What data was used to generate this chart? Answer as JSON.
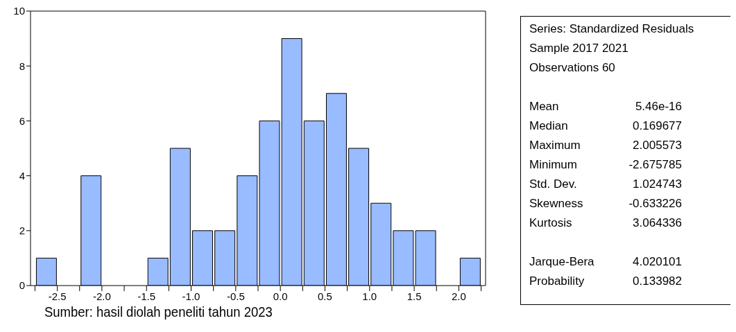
{
  "chart_data": {
    "type": "histogram",
    "color": "#99bbff",
    "bins": [
      -2.75,
      -2.5,
      -2.25,
      -2.0,
      -1.75,
      -1.5,
      -1.25,
      -1.0,
      -0.75,
      -0.5,
      -0.25,
      0.0,
      0.25,
      0.5,
      0.75,
      1.0,
      1.25,
      1.5,
      1.75,
      2.0,
      2.25
    ],
    "values": [
      1,
      0,
      4,
      0,
      0,
      1,
      5,
      2,
      2,
      4,
      6,
      9,
      6,
      7,
      5,
      3,
      2,
      2,
      0,
      1
    ],
    "xlim": [
      -2.8,
      2.3
    ],
    "xticks": [
      {
        "value": -2.75,
        "label": null
      },
      -2.5,
      {
        "value": -2.25,
        "label": null
      },
      {
        "value": -2.0,
        "label": "-2.0"
      },
      {
        "value": -1.75,
        "label": null
      },
      -1.5,
      {
        "value": -1.25,
        "label": null
      },
      {
        "value": -1.0,
        "label": "-1.0"
      },
      {
        "value": -0.75,
        "label": null
      },
      -0.5,
      {
        "value": -0.25,
        "label": null
      },
      {
        "value": 0,
        "label": "0.0"
      },
      {
        "value": 0.25,
        "label": null
      },
      0.5,
      {
        "value": 0.75,
        "label": null
      },
      {
        "value": 1.0,
        "label": "1.0"
      },
      {
        "value": 1.25,
        "label": null
      },
      1.5,
      {
        "value": 1.75,
        "label": null
      },
      {
        "value": 2.0,
        "label": "2.0"
      },
      {
        "value": 2.25,
        "label": null
      }
    ],
    "ylim": [
      0,
      10
    ],
    "yticks": [
      0,
      2,
      4,
      6,
      8,
      10
    ],
    "grid": false,
    "annotations": [
      "Series: Standardized Residuals",
      "Sample 2017 2021",
      "Observations 60",
      "Mean",
      "5.46e-16",
      "Median",
      "0.169677",
      "Maximum",
      "2.005573",
      "Minimum",
      "-2.675785",
      "Std. Dev.",
      "1.024743",
      "Skewness",
      "-0.633226",
      "Kurtosis",
      "3.064336",
      "Jarque-Bera",
      "4.020101",
      "Probability",
      "0.133982",
      "Sumber: hasil diolah peneliti tahun 2023"
    ]
  }
}
